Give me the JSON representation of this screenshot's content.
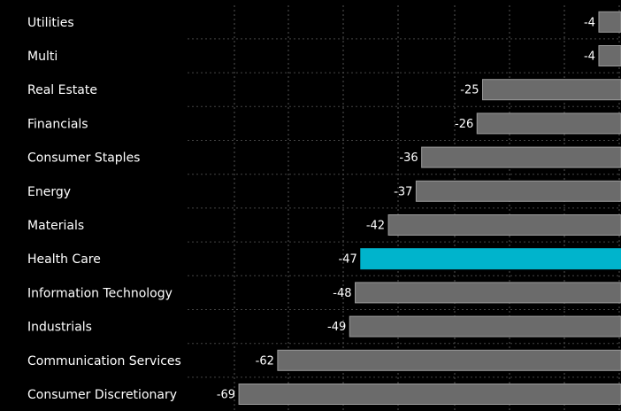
{
  "chart_data": {
    "type": "bar",
    "orientation": "horizontal",
    "title": "",
    "xlabel": "",
    "ylabel": "",
    "categories": [
      "Utilities",
      "Multi",
      "Real Estate",
      "Financials",
      "Consumer Staples",
      "Energy",
      "Materials",
      "Health Care",
      "Information Technology",
      "Industrials",
      "Communication Services",
      "Consumer Discretionary"
    ],
    "values": [
      -4,
      -4,
      -25,
      -26,
      -36,
      -37,
      -42,
      -47,
      -48,
      -49,
      -62,
      -69
    ],
    "value_labels": [
      "-4",
      "-4",
      "-25",
      "-26",
      "-36",
      "-37",
      "-42",
      "-47",
      "-48",
      "-49",
      "-62",
      "-69"
    ],
    "highlight_category": "Health Care",
    "xlim": [
      -69,
      0
    ],
    "grid": true,
    "legend": "none",
    "colors": {
      "background": "#000000",
      "bar": "#6b6b6b",
      "bar_highlight": "#00b4cc",
      "bar_border": "#9a9a9a",
      "text": "#ffffff"
    }
  }
}
